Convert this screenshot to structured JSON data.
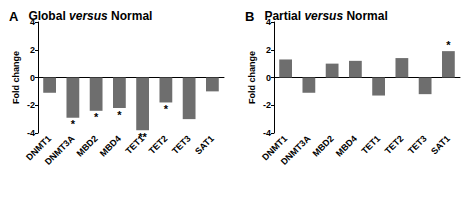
{
  "chart_data": [
    {
      "type": "bar",
      "panel_label": "A",
      "title": "Global versus Normal",
      "ylabel": "Fold change",
      "categories": [
        "DNMT1",
        "DNMT3A",
        "MBD2",
        "MBD4",
        "TET1",
        "TET2",
        "TET3",
        "SAT1"
      ],
      "values": [
        -1.1,
        -2.9,
        -2.4,
        -2.2,
        -3.8,
        -1.8,
        -3.0,
        -1.0
      ],
      "significance": [
        null,
        "*",
        "*",
        "*",
        "**",
        "*",
        null,
        null
      ],
      "color": "#6e6e6e",
      "ylim": [
        -4,
        4
      ],
      "yticks": [
        -4,
        -2,
        0,
        2,
        4
      ],
      "grid": false
    },
    {
      "type": "bar",
      "panel_label": "B",
      "title": "Partial versus Normal",
      "ylabel": "Fold change",
      "categories": [
        "DNMT1",
        "DNMT3A",
        "MBD2",
        "MBD4",
        "TET1",
        "TET2",
        "TET3",
        "SAT1"
      ],
      "values": [
        1.3,
        -1.1,
        1.0,
        1.2,
        -1.3,
        1.4,
        -1.2,
        1.9
      ],
      "significance": [
        null,
        null,
        null,
        null,
        null,
        null,
        null,
        "*"
      ],
      "color": "#6e6e6e",
      "ylim": [
        -4,
        4
      ],
      "yticks": [
        -4,
        -2,
        0,
        2,
        4
      ],
      "grid": false
    }
  ]
}
